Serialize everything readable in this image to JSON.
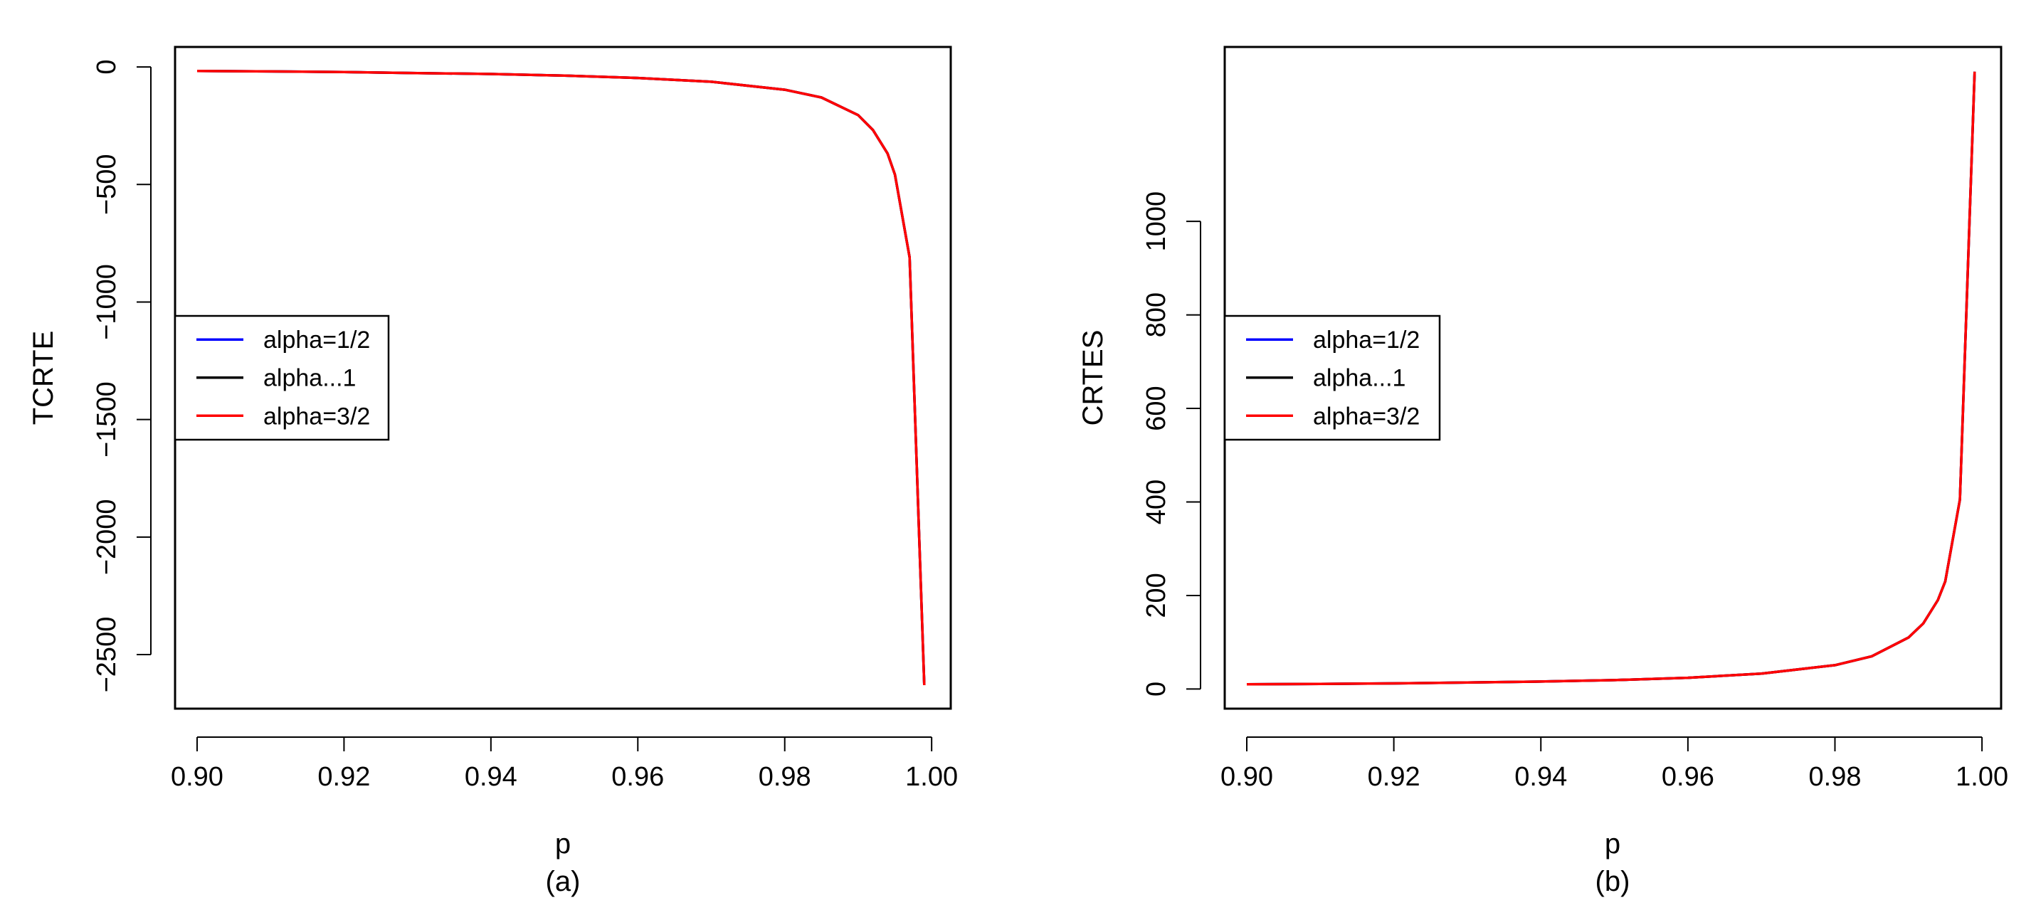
{
  "chart_data": [
    {
      "id": "panel-a",
      "type": "line",
      "title": "",
      "caption": "(a)",
      "xlabel": "p",
      "ylabel": "TCRTE",
      "xlim": [
        0.897,
        1.0026
      ],
      "ylim": [
        -2730,
        85
      ],
      "xticks": [
        0.9,
        0.92,
        0.94,
        0.96,
        0.98,
        1.0
      ],
      "xtick_labels": [
        "0.90",
        "0.92",
        "0.94",
        "0.96",
        "0.98",
        "1.00"
      ],
      "yticks": [
        0,
        -500,
        -1000,
        -1500,
        -2000,
        -2500
      ],
      "ytick_labels": [
        "0",
        "−500",
        "−1000",
        "−1500",
        "−2000",
        "−2500"
      ],
      "grid": false,
      "legend_position": "left-middle",
      "x": [
        0.9,
        0.91,
        0.92,
        0.93,
        0.94,
        0.95,
        0.96,
        0.97,
        0.98,
        0.985,
        0.99,
        0.992,
        0.994,
        0.995,
        0.997,
        0.999
      ],
      "series": [
        {
          "name": "alpha=1/2",
          "color": "#0000ff",
          "values": [
            -17,
            -19,
            -22,
            -26,
            -30,
            -37,
            -47,
            -63,
            -97,
            -130,
            -205,
            -268,
            -368,
            -458,
            -810,
            -2630
          ]
        },
        {
          "name": "alpha...1",
          "color": "#000000",
          "values": [
            -17,
            -19,
            -22,
            -26,
            -30,
            -37,
            -47,
            -63,
            -97,
            -130,
            -205,
            -268,
            -368,
            -458,
            -810,
            -2630
          ]
        },
        {
          "name": "alpha=3/2",
          "color": "#ff0000",
          "values": [
            -17,
            -19,
            -22,
            -26,
            -30,
            -37,
            -47,
            -63,
            -97,
            -130,
            -205,
            -268,
            -368,
            -458,
            -810,
            -2630
          ]
        }
      ]
    },
    {
      "id": "panel-b",
      "type": "line",
      "title": "",
      "caption": "(b)",
      "xlabel": "p",
      "ylabel": "CRTES",
      "xlim": [
        0.897,
        1.0026
      ],
      "ylim": [
        -42,
        1373
      ],
      "xticks": [
        0.9,
        0.92,
        0.94,
        0.96,
        0.98,
        1.0
      ],
      "xtick_labels": [
        "0.90",
        "0.92",
        "0.94",
        "0.96",
        "0.98",
        "1.00"
      ],
      "yticks": [
        0,
        200,
        400,
        600,
        800,
        1000
      ],
      "ytick_labels": [
        "0",
        "200",
        "400",
        "600",
        "800",
        "1000"
      ],
      "grid": false,
      "legend_position": "left-middle",
      "x": [
        0.9,
        0.91,
        0.92,
        0.93,
        0.94,
        0.95,
        0.96,
        0.97,
        0.98,
        0.985,
        0.99,
        0.992,
        0.994,
        0.995,
        0.997,
        0.999
      ],
      "series": [
        {
          "name": "alpha=1/2",
          "color": "#0000ff",
          "values": [
            10,
            11,
            12,
            14,
            16,
            19,
            24,
            33,
            51,
            70,
            110,
            140,
            190,
            230,
            405,
            1320
          ]
        },
        {
          "name": "alpha...1",
          "color": "#000000",
          "values": [
            10,
            11,
            12,
            14,
            16,
            19,
            24,
            33,
            51,
            70,
            110,
            140,
            190,
            230,
            405,
            1320
          ]
        },
        {
          "name": "alpha=3/2",
          "color": "#ff0000",
          "values": [
            10,
            11,
            12,
            14,
            16,
            19,
            24,
            33,
            51,
            70,
            110,
            140,
            190,
            230,
            405,
            1320
          ]
        }
      ]
    }
  ]
}
